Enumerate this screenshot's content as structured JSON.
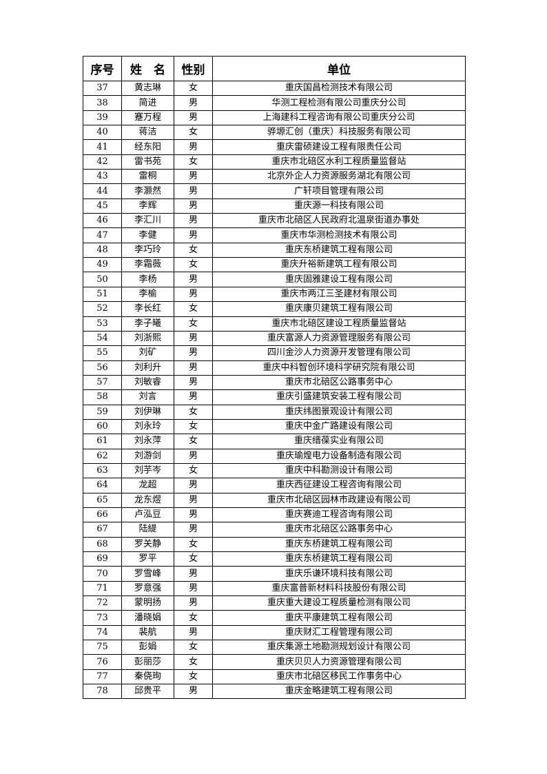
{
  "table": {
    "headers": [
      "序号",
      "姓　名",
      "性别",
      "单位"
    ],
    "rows": [
      [
        "37",
        "黄志琳",
        "女",
        "重庆国昌检测技术有限公司"
      ],
      [
        "38",
        "简进",
        "男",
        "华测工程检测有限公司重庆分公司"
      ],
      [
        "39",
        "蹇万程",
        "男",
        "上海建科工程咨询有限公司重庆分公司"
      ],
      [
        "40",
        "蒋洁",
        "女",
        "骅塬汇创（重庆）科技服务有限公司"
      ],
      [
        "41",
        "经东阳",
        "男",
        "重庆雷硕建设工程有限责任公司"
      ],
      [
        "42",
        "雷书苑",
        "女",
        "重庆市北碚区水利工程质量监督站"
      ],
      [
        "43",
        "雷桐",
        "男",
        "北京外企人力资源服务湖北有限公司"
      ],
      [
        "44",
        "李灏然",
        "男",
        "广轩项目管理有限公司"
      ],
      [
        "45",
        "李辉",
        "男",
        "重庆源一科技有限公司"
      ],
      [
        "46",
        "李汇川",
        "男",
        "重庆市北碚区人民政府北温泉街道办事处"
      ],
      [
        "47",
        "李健",
        "男",
        "重庆市华测检测技术有限公司"
      ],
      [
        "48",
        "李巧玲",
        "女",
        "重庆东桥建筑工程有限公司"
      ],
      [
        "49",
        "李霜薇",
        "女",
        "重庆升裕新建筑工程有限公司"
      ],
      [
        "50",
        "李杨",
        "男",
        "重庆固雅建设工程有限公司"
      ],
      [
        "51",
        "李榆",
        "男",
        "重庆市两江三圣建材有限公司"
      ],
      [
        "52",
        "李长红",
        "女",
        "重庆康贝建筑工程有限公司"
      ],
      [
        "53",
        "李子曦",
        "女",
        "重庆市北碚区建设工程质量监督站"
      ],
      [
        "54",
        "刘浙熙",
        "男",
        "重庆富源人力资源管理服务有限公司"
      ],
      [
        "55",
        "刘矿",
        "男",
        "四川金沙人力资源开发管理有限公司"
      ],
      [
        "56",
        "刘利升",
        "男",
        "重庆中科智创环境科学研究院有限公司"
      ],
      [
        "57",
        "刘敏睿",
        "男",
        "重庆市北碚区公路事务中心"
      ],
      [
        "58",
        "刘言",
        "男",
        "重庆引盛建筑安装工程有限公司"
      ],
      [
        "59",
        "刘伊琳",
        "女",
        "重庆纬图景观设计有限公司"
      ],
      [
        "60",
        "刘永玲",
        "女",
        "重庆中金广路建设有限公司"
      ],
      [
        "61",
        "刘永萍",
        "女",
        "重庆缙葆实业有限公司"
      ],
      [
        "62",
        "刘游剑",
        "男",
        "重庆瑜煌电力设备制造有限公司"
      ],
      [
        "63",
        "刘芋岑",
        "女",
        "重庆中科勘测设计有限公司"
      ],
      [
        "64",
        "龙超",
        "男",
        "重庆西征建设工程咨询有限公司"
      ],
      [
        "65",
        "龙东煜",
        "男",
        "重庆市北碚区园林市政建设有限公司"
      ],
      [
        "66",
        "卢泓豆",
        "男",
        "重庆赛迪工程咨询有限公司"
      ],
      [
        "67",
        "陆緹",
        "男",
        "重庆市北碚区公路事务中心"
      ],
      [
        "68",
        "罗关静",
        "女",
        "重庆东桥建筑工程有限公司"
      ],
      [
        "69",
        "罗平",
        "女",
        "重庆东桥建筑工程有限公司"
      ],
      [
        "70",
        "罗雪峰",
        "男",
        "重庆乐谦环境科技有限公司"
      ],
      [
        "71",
        "罗意强",
        "男",
        "重庆富普新材料科技股份有限公司"
      ],
      [
        "72",
        "蒙明扬",
        "男",
        "重庆重大建设工程质量检测有限公司"
      ],
      [
        "73",
        "潘晓娟",
        "女",
        "重庆平康建筑工程有限公司"
      ],
      [
        "74",
        "裴航",
        "男",
        "重庆财汇工程管理有限公司"
      ],
      [
        "75",
        "彭娟",
        "女",
        "重庆集源土地勘测规划设计有限公司"
      ],
      [
        "76",
        "彭丽莎",
        "女",
        "重庆贝贝人力资源管理有限公司"
      ],
      [
        "77",
        "秦侥珣",
        "女",
        "重庆市北碚区移民工作事务中心"
      ],
      [
        "78",
        "邱贵平",
        "男",
        "重庆金略建筑工程有限公司"
      ]
    ]
  }
}
